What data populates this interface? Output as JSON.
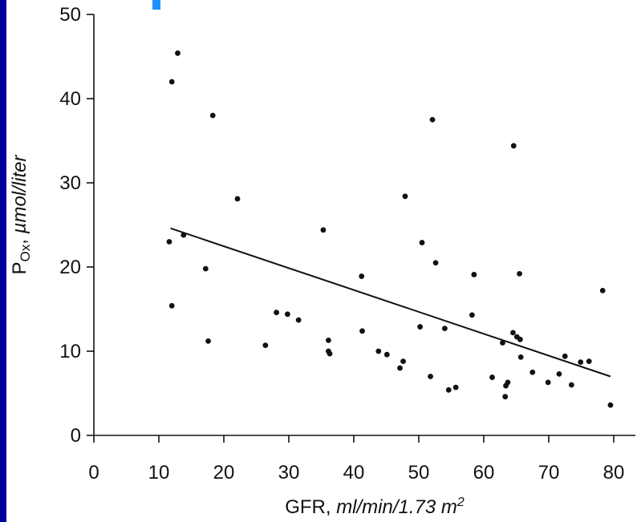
{
  "colors": {
    "background": "#0000a0",
    "plot_background": "#ffffff",
    "ink": "#111111",
    "accent": "#1e90ff"
  },
  "chart_data": {
    "type": "scatter",
    "xlabel": {
      "prefix": "GFR, ",
      "italic": "ml/min/1.73 m",
      "superscript": "2"
    },
    "ylabel": {
      "main": "P",
      "subscript": "Ox",
      "sep": ", ",
      "italic": "µmol/liter"
    },
    "xlim": [
      0,
      80
    ],
    "ylim": [
      0,
      50
    ],
    "xticks": [
      "0",
      "10",
      "20",
      "30",
      "40",
      "50",
      "60",
      "70",
      "80"
    ],
    "yticks": [
      "0",
      "10",
      "20",
      "30",
      "40",
      "50"
    ],
    "grid": false,
    "points": [
      [
        12,
        42
      ],
      [
        12.9,
        45.4
      ],
      [
        18.3,
        38
      ],
      [
        11.6,
        23
      ],
      [
        12,
        15.4
      ],
      [
        13.8,
        23.8
      ],
      [
        17.2,
        19.8
      ],
      [
        17.6,
        11.2
      ],
      [
        22.1,
        28.1
      ],
      [
        26.4,
        10.7
      ],
      [
        28.1,
        14.6
      ],
      [
        29.8,
        14.4
      ],
      [
        31.5,
        13.7
      ],
      [
        35.3,
        24.4
      ],
      [
        36.1,
        11.3
      ],
      [
        36.1,
        10
      ],
      [
        36.3,
        9.7
      ],
      [
        41.2,
        18.9
      ],
      [
        41.3,
        12.4
      ],
      [
        43.8,
        10
      ],
      [
        45.1,
        9.6
      ],
      [
        47.1,
        8
      ],
      [
        47.6,
        8.8
      ],
      [
        47.9,
        28.4
      ],
      [
        50.2,
        12.9
      ],
      [
        50.5,
        22.9
      ],
      [
        51.8,
        7
      ],
      [
        52.1,
        37.5
      ],
      [
        52.6,
        20.5
      ],
      [
        54,
        12.7
      ],
      [
        54.6,
        5.4
      ],
      [
        55.7,
        5.7
      ],
      [
        58.2,
        14.3
      ],
      [
        58.5,
        19.1
      ],
      [
        61.3,
        6.9
      ],
      [
        62.9,
        11
      ],
      [
        63.3,
        4.6
      ],
      [
        63.4,
        5.9
      ],
      [
        63.7,
        6.3
      ],
      [
        64.5,
        12.2
      ],
      [
        64.6,
        34.4
      ],
      [
        65.1,
        11.7
      ],
      [
        65.5,
        19.2
      ],
      [
        65.6,
        11.4
      ],
      [
        65.7,
        9.3
      ],
      [
        67.5,
        7.5
      ],
      [
        69.9,
        6.3
      ],
      [
        71.6,
        7.3
      ],
      [
        72.5,
        9.4
      ],
      [
        73.5,
        6
      ],
      [
        74.9,
        8.7
      ],
      [
        76.2,
        8.8
      ],
      [
        78.3,
        17.2
      ],
      [
        79.5,
        3.6
      ]
    ],
    "regression_line": {
      "x": [
        11.8,
        79.5
      ],
      "y": [
        24.6,
        7
      ]
    }
  }
}
